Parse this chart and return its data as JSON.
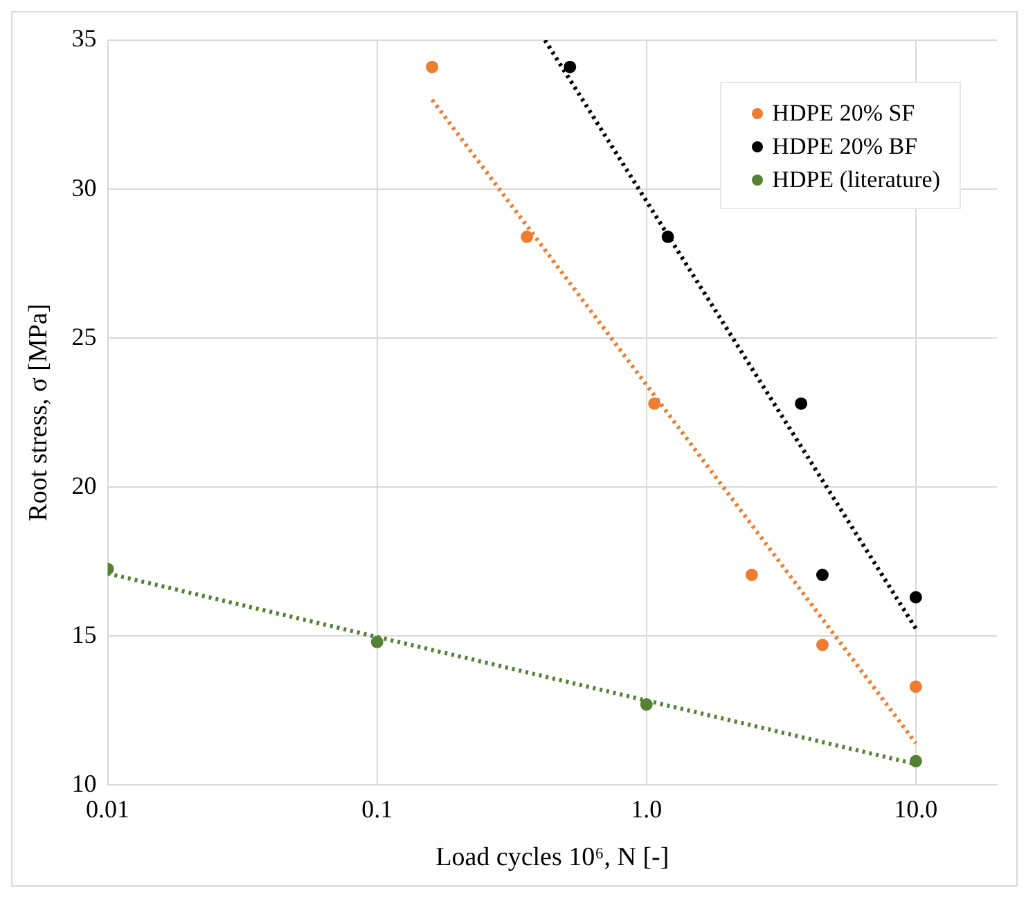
{
  "chart_data": {
    "type": "scatter",
    "xlabel": "Load cycles 10⁶, N [-]",
    "ylabel": "Root stress, σ [MPa]",
    "log": "x",
    "xlim": [
      0.01,
      20
    ],
    "xticks": [
      0.01,
      0.1,
      {
        "value": 1,
        "label": "1.0"
      },
      {
        "value": 10,
        "label": "10.0"
      }
    ],
    "ylim": [
      10,
      35
    ],
    "yticks": [
      10,
      15,
      20,
      25,
      30,
      35
    ],
    "grid": true,
    "legend": "top right",
    "marker": "circle",
    "series": [
      {
        "name": "HDPE 20% SF",
        "color": "#ed7d31",
        "x": [
          0.16,
          0.36,
          1.07,
          2.46,
          4.5,
          10
        ],
        "values": [
          34.1,
          28.4,
          22.8,
          17.05,
          14.7,
          13.3
        ]
      },
      {
        "name": "HDPE 20% BF",
        "color": "#000000",
        "x": [
          0.52,
          1.2,
          3.75,
          4.5,
          10
        ],
        "values": [
          34.1,
          28.4,
          22.8,
          17.05,
          16.3
        ]
      },
      {
        "name": "HDPE (literature)",
        "color": "#548235",
        "x": [
          0.01,
          0.1,
          1,
          10
        ],
        "values": [
          17.25,
          14.8,
          12.7,
          10.8
        ]
      },
      {
        "type": "line",
        "color": "#ed7d31",
        "line_style": "dotted",
        "marker": "none",
        "x": [
          0.16,
          10
        ],
        "values": [
          33.0,
          11.4
        ]
      },
      {
        "type": "line",
        "color": "#000000",
        "line_style": "dotted",
        "marker": "none",
        "x": [
          0.42,
          10
        ],
        "values": [
          35,
          15.25
        ]
      },
      {
        "type": "line",
        "color": "#548235",
        "line_style": "dotted",
        "marker": "none",
        "x": [
          0.01,
          10
        ],
        "values": [
          17.1,
          10.7
        ]
      }
    ]
  }
}
